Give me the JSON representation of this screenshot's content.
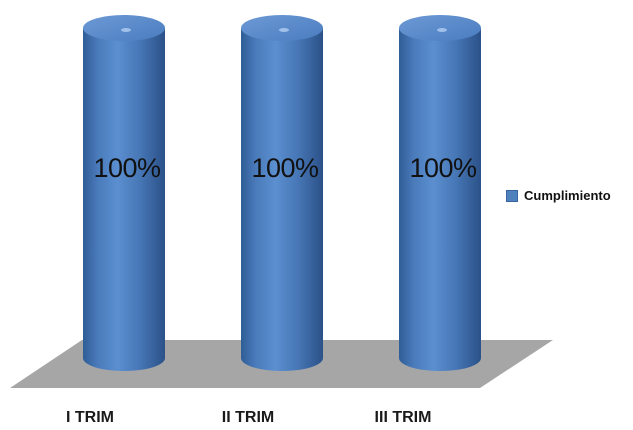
{
  "chart_data": {
    "type": "bar",
    "categories": [
      "I TRIM",
      "II TRIM",
      "III TRIM"
    ],
    "series": [
      {
        "name": "Cumplimiento",
        "values": [
          100,
          100,
          100
        ],
        "data_labels": [
          "100%",
          "100%",
          "100%"
        ]
      }
    ],
    "ylim": [
      0,
      100
    ],
    "grid": false,
    "legend_position": "right",
    "style": "3d-cylinder",
    "colors": {
      "bar": "#4f81bd",
      "floor": "#a6a6a6"
    }
  }
}
